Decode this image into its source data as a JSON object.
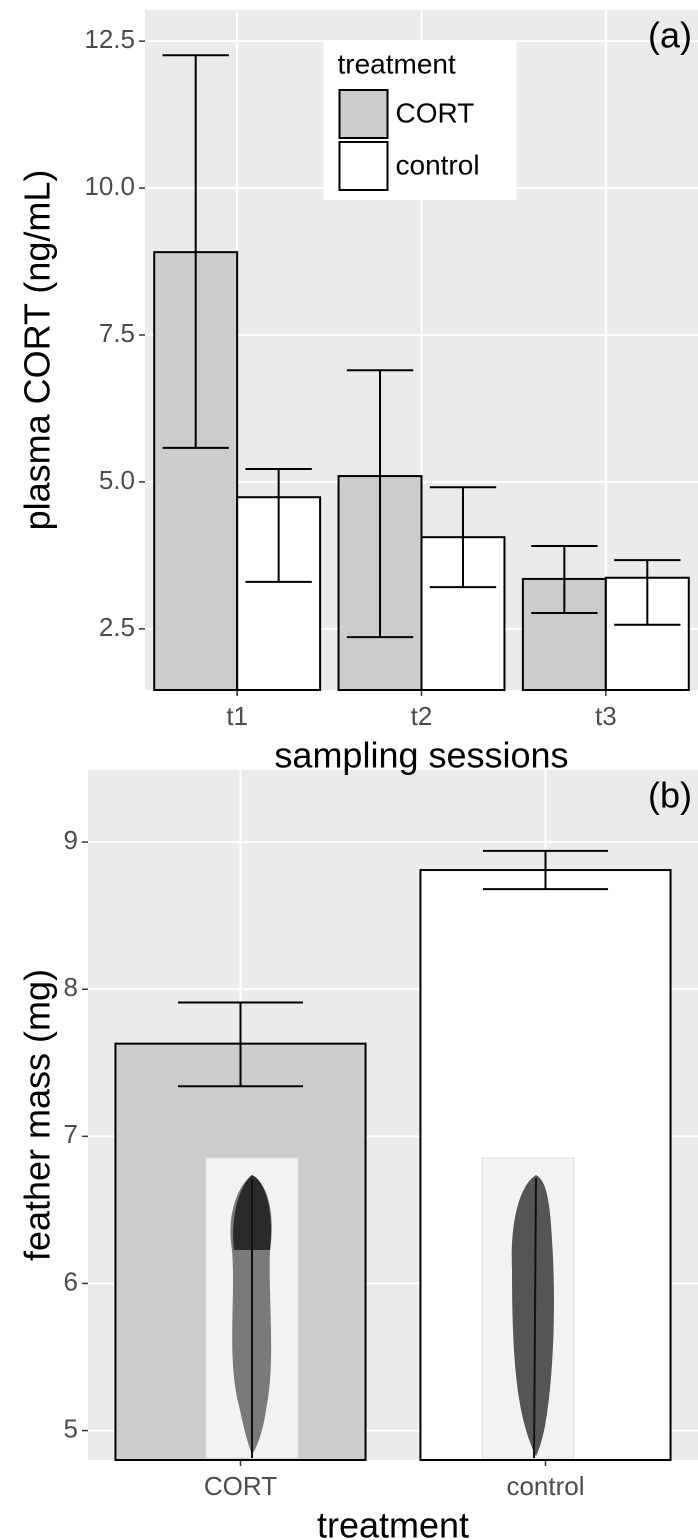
{
  "chart_data": [
    {
      "type": "bar",
      "panel_label": "(a)",
      "x_label": "sampling sessions",
      "y_label": "plasma CORT (ng/mL)",
      "categories": [
        "t1",
        "t2",
        "t3"
      ],
      "series": [
        {
          "name": "CORT",
          "color": "#cccccc",
          "values": [
            8.91,
            5.1,
            3.35
          ],
          "error_low": [
            5.58,
            2.36,
            2.77
          ],
          "error_high": [
            12.26,
            6.9,
            3.91
          ]
        },
        {
          "name": "control",
          "color": "#ffffff",
          "values": [
            4.74,
            4.06,
            3.37
          ],
          "error_low": [
            3.3,
            3.21,
            2.57
          ],
          "error_high": [
            5.22,
            4.91,
            3.67
          ]
        }
      ],
      "ylim": [
        1.46,
        13.03
      ],
      "yticks": [
        2.5,
        {
          "value": 5,
          "label": "5.0"
        },
        7.5,
        {
          "value": 10,
          "label": "10.0"
        },
        12.5
      ],
      "legend_title": "treatment",
      "legend_position": "top",
      "grid": true
    },
    {
      "type": "bar",
      "panel_label": "(b)",
      "x_label": "treatment",
      "y_label": "feather mass (mg)",
      "categories": [
        "CORT",
        "control"
      ],
      "values": [
        7.63,
        8.81
      ],
      "colors": [
        "#cccccc",
        "#ffffff"
      ],
      "error_low": [
        7.34,
        8.68
      ],
      "error_high": [
        7.91,
        8.94
      ],
      "ylim": [
        4.8,
        9.49
      ],
      "yticks": [
        5,
        6,
        7,
        8,
        9
      ],
      "grid": true
    }
  ]
}
